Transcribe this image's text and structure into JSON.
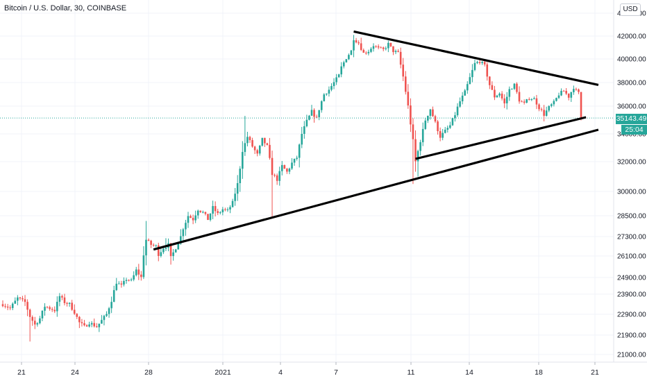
{
  "chart_data": {
    "type": "candlestick",
    "title": "Bitcoin / U.S. Dollar, 30, COINBASE",
    "currency_label": "USD",
    "last_price": "35143.49",
    "bar_countdown": "25:04",
    "y_ticks": [
      "44000.00",
      "42000.00",
      "40000.00",
      "38000.00",
      "36000.00",
      "34000.00",
      "32000.00",
      "30000.00",
      "28500.00",
      "27300.00",
      "26100.00",
      "24900.00",
      "23900.00",
      "22900.00",
      "21900.00",
      "21000.00"
    ],
    "x_ticks": [
      "21",
      "24",
      "28",
      "2021",
      "4",
      "7",
      "11",
      "14",
      "18",
      "21"
    ],
    "grid": true,
    "colors": {
      "up": "#26a69a",
      "down": "#ef5350",
      "trendline": "#000000",
      "price_line": "#26a69a"
    },
    "price_path": [
      [
        0,
        23400
      ],
      [
        3,
        23200
      ],
      [
        6,
        23700
      ],
      [
        9,
        23500
      ],
      [
        11,
        22800
      ],
      [
        13,
        22400
      ],
      [
        15,
        22700
      ],
      [
        17,
        23300
      ],
      [
        19,
        23200
      ],
      [
        21,
        23100
      ],
      [
        23,
        23800
      ],
      [
        25,
        23500
      ],
      [
        27,
        23400
      ],
      [
        29,
        23000
      ],
      [
        31,
        22500
      ],
      [
        33,
        22300
      ],
      [
        35,
        22500
      ],
      [
        38,
        22300
      ],
      [
        40,
        22600
      ],
      [
        42,
        22900
      ],
      [
        44,
        23600
      ],
      [
        46,
        24600
      ],
      [
        48,
        24400
      ],
      [
        50,
        24800
      ],
      [
        52,
        24700
      ],
      [
        54,
        25300
      ],
      [
        56,
        24900
      ],
      [
        57,
        26200
      ],
      [
        58,
        27100
      ],
      [
        60,
        26800
      ],
      [
        62,
        26700
      ],
      [
        63,
        26200
      ],
      [
        65,
        26600
      ],
      [
        67,
        26800
      ],
      [
        68,
        26000
      ],
      [
        70,
        26600
      ],
      [
        72,
        27300
      ],
      [
        73,
        27800
      ],
      [
        75,
        28500
      ],
      [
        77,
        28300
      ],
      [
        79,
        28900
      ],
      [
        81,
        28700
      ],
      [
        83,
        28300
      ],
      [
        85,
        29000
      ],
      [
        87,
        28600
      ],
      [
        89,
        28900
      ],
      [
        91,
        28800
      ],
      [
        93,
        29300
      ],
      [
        95,
        30500
      ],
      [
        96,
        31600
      ],
      [
        97,
        32800
      ],
      [
        99,
        33800
      ],
      [
        101,
        33100
      ],
      [
        103,
        32500
      ],
      [
        105,
        33600
      ],
      [
        107,
        33100
      ],
      [
        109,
        31200
      ],
      [
        111,
        30800
      ],
      [
        113,
        31700
      ],
      [
        115,
        31300
      ],
      [
        117,
        31900
      ],
      [
        119,
        32300
      ],
      [
        121,
        34000
      ],
      [
        123,
        34900
      ],
      [
        125,
        35600
      ],
      [
        127,
        35100
      ],
      [
        128,
        35800
      ],
      [
        130,
        37000
      ],
      [
        132,
        37400
      ],
      [
        134,
        38000
      ],
      [
        136,
        38600
      ],
      [
        137,
        39300
      ],
      [
        139,
        40100
      ],
      [
        141,
        40700
      ],
      [
        142,
        41800
      ],
      [
        144,
        41400
      ],
      [
        146,
        40500
      ],
      [
        148,
        40700
      ],
      [
        150,
        41200
      ],
      [
        152,
        40900
      ],
      [
        154,
        40800
      ],
      [
        156,
        41300
      ],
      [
        158,
        40700
      ],
      [
        160,
        40500
      ],
      [
        162,
        38500
      ],
      [
        164,
        36000
      ],
      [
        166,
        33500
      ],
      [
        167,
        32000
      ],
      [
        169,
        33500
      ],
      [
        171,
        35000
      ],
      [
        173,
        35800
      ],
      [
        175,
        34800
      ],
      [
        177,
        33800
      ],
      [
        179,
        34200
      ],
      [
        181,
        34600
      ],
      [
        183,
        35400
      ],
      [
        185,
        36400
      ],
      [
        187,
        37200
      ],
      [
        189,
        38400
      ],
      [
        191,
        39600
      ],
      [
        193,
        39800
      ],
      [
        195,
        39400
      ],
      [
        197,
        37800
      ],
      [
        199,
        36800
      ],
      [
        201,
        37100
      ],
      [
        203,
        36200
      ],
      [
        205,
        37400
      ],
      [
        207,
        37800
      ],
      [
        209,
        36500
      ],
      [
        211,
        36200
      ],
      [
        213,
        36700
      ],
      [
        215,
        36600
      ],
      [
        217,
        35900
      ],
      [
        219,
        35400
      ],
      [
        221,
        35900
      ],
      [
        223,
        36300
      ],
      [
        225,
        37000
      ],
      [
        227,
        37300
      ],
      [
        229,
        36800
      ],
      [
        231,
        37600
      ],
      [
        232,
        37300
      ],
      [
        233,
        37100
      ],
      [
        234,
        35143
      ]
    ],
    "wick_extremes": [
      {
        "x": 11,
        "low": 21600
      },
      {
        "x": 58,
        "high": 28200
      },
      {
        "x": 66,
        "high": 27200,
        "low": 26400
      },
      {
        "x": 98,
        "high": 35300
      },
      {
        "x": 109,
        "low": 28400
      },
      {
        "x": 142,
        "high": 42100
      },
      {
        "x": 166,
        "low": 30500
      },
      {
        "x": 168,
        "low": 31000
      }
    ],
    "trendlines": [
      {
        "x1": 61,
        "y1": 26500,
        "x2": 241,
        "y2": 34300
      },
      {
        "x1": 142,
        "y1": 42400,
        "x2": 241,
        "y2": 37800
      },
      {
        "x1": 167,
        "y1": 32200,
        "x2": 236,
        "y2": 35200
      }
    ]
  }
}
